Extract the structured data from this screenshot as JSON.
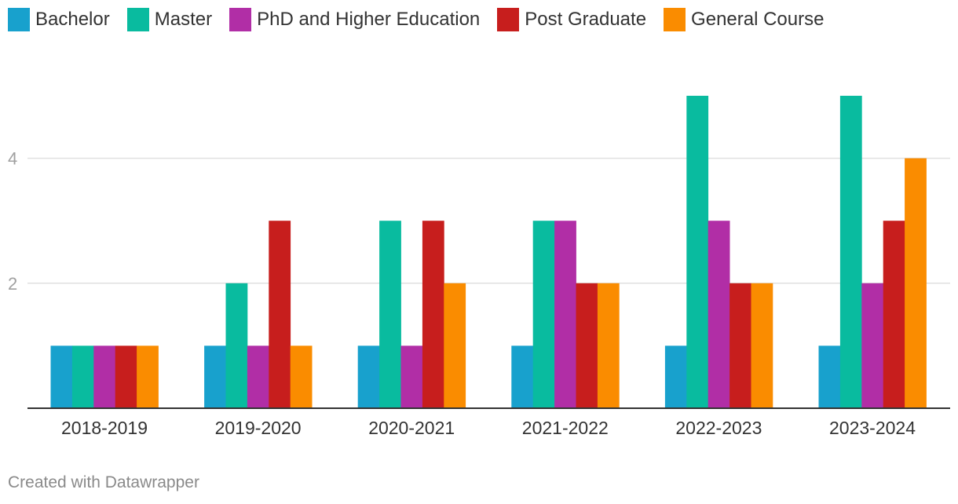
{
  "chart_data": {
    "type": "bar",
    "categories": [
      "2018-2019",
      "2019-2020",
      "2020-2021",
      "2021-2022",
      "2022-2023",
      "2023-2024"
    ],
    "series": [
      {
        "name": "Bachelor",
        "color": "#18a1cd",
        "values": [
          1,
          1,
          1,
          1,
          1,
          1
        ]
      },
      {
        "name": "Master",
        "color": "#09bb9f",
        "values": [
          1,
          2,
          3,
          3,
          5,
          5
        ]
      },
      {
        "name": "PhD and Higher Education",
        "color": "#b12ea6",
        "values": [
          1,
          1,
          1,
          3,
          3,
          2
        ]
      },
      {
        "name": "Post Graduate",
        "color": "#c71e1d",
        "values": [
          1,
          3,
          3,
          2,
          2,
          3
        ]
      },
      {
        "name": "General Course",
        "color": "#fa8c00",
        "values": [
          1,
          1,
          2,
          2,
          2,
          4
        ]
      }
    ],
    "yticks": [
      "2",
      "4"
    ],
    "ylim": [
      0,
      5
    ],
    "grid": true,
    "legend": "top-left"
  },
  "footer": "Created with Datawrapper"
}
